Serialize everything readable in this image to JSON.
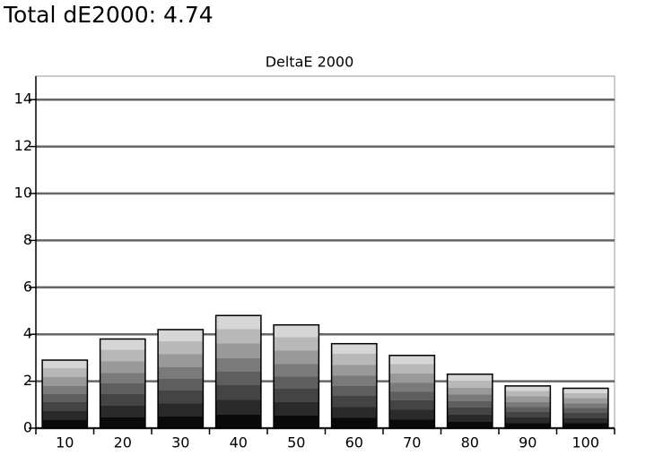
{
  "chart_data": {
    "type": "bar",
    "page_title": "Total dE2000: 4.74",
    "title": "DeltaE 2000",
    "categories": [
      "10",
      "20",
      "30",
      "40",
      "50",
      "60",
      "70",
      "80",
      "90",
      "100"
    ],
    "values": [
      2.9,
      3.8,
      4.2,
      4.8,
      4.4,
      3.6,
      3.1,
      2.3,
      1.8,
      1.7
    ],
    "ylim": [
      0,
      15
    ],
    "yticks": [
      0,
      2,
      4,
      6,
      8,
      10,
      12,
      14
    ],
    "grid": true
  }
}
